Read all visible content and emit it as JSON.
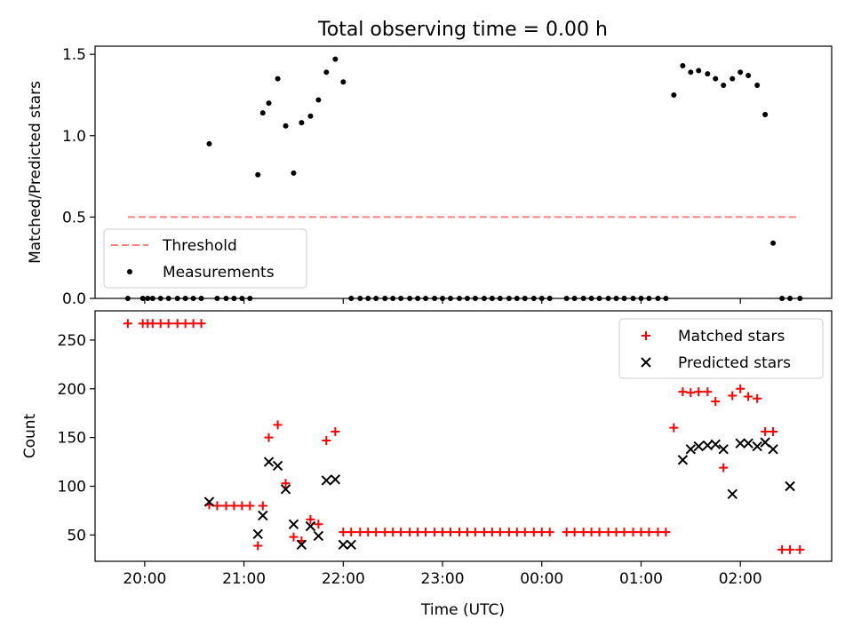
{
  "title": "Total observing time = 0.00 h",
  "chart_data": [
    {
      "type": "scatter",
      "panel": "top",
      "ylabel": "Matched/Predicted stars",
      "ylim": [
        0,
        1.55
      ],
      "yticks": [
        0.0,
        0.5,
        1.0,
        1.5
      ],
      "ytick_labels": [
        "0.0",
        "0.5",
        "1.0",
        "1.5"
      ],
      "xlim": [
        19.5,
        26.92
      ],
      "grid": false,
      "legend_position": "lower-left",
      "threshold": {
        "name": "Threshold",
        "value": 0.5,
        "x": [
          19.83,
          26.6
        ],
        "color": "#ff7f7f"
      },
      "series": [
        {
          "name": "Measurements",
          "color": "#000000",
          "x": [
            19.83,
            19.98,
            20.03,
            20.08,
            20.16,
            20.24,
            20.33,
            20.41,
            20.49,
            20.57,
            20.65,
            20.73,
            20.82,
            20.9,
            20.98,
            21.06,
            21.14,
            21.19,
            21.25,
            21.34,
            21.42,
            21.5,
            21.58,
            21.67,
            21.75,
            21.83,
            21.92,
            22.0,
            22.08,
            22.17,
            22.25,
            22.33,
            22.42,
            22.5,
            22.58,
            22.67,
            22.75,
            22.83,
            22.92,
            23.0,
            23.08,
            23.17,
            23.25,
            23.33,
            23.42,
            23.5,
            23.58,
            23.67,
            23.75,
            23.83,
            23.92,
            24.0,
            24.08,
            24.25,
            24.33,
            24.42,
            24.5,
            24.58,
            24.67,
            24.75,
            24.83,
            24.92,
            25.0,
            25.08,
            25.17,
            25.25,
            25.33,
            25.42,
            25.5,
            25.58,
            25.67,
            25.75,
            25.83,
            25.92,
            26.0,
            26.08,
            26.17,
            26.25,
            26.33,
            26.42,
            26.5,
            26.6
          ],
          "y": [
            0.0,
            0.0,
            0.0,
            0.0,
            0.0,
            0.0,
            0.0,
            0.0,
            0.0,
            0.0,
            0.95,
            0.0,
            0.0,
            0.0,
            0.0,
            0.0,
            0.76,
            1.14,
            1.2,
            1.35,
            1.06,
            0.77,
            1.08,
            1.12,
            1.22,
            1.39,
            1.47,
            1.33,
            0.0,
            0.0,
            0.0,
            0.0,
            0.0,
            0.0,
            0.0,
            0.0,
            0.0,
            0.0,
            0.0,
            0.0,
            0.0,
            0.0,
            0.0,
            0.0,
            0.0,
            0.0,
            0.0,
            0.0,
            0.0,
            0.0,
            0.0,
            0.0,
            0.0,
            0.0,
            0.0,
            0.0,
            0.0,
            0.0,
            0.0,
            0.0,
            0.0,
            0.0,
            0.0,
            0.0,
            0.0,
            0.0,
            1.25,
            1.43,
            1.39,
            1.4,
            1.38,
            1.35,
            1.31,
            1.35,
            1.39,
            1.37,
            1.31,
            1.13,
            0.34,
            0.0,
            0.0,
            0.0
          ]
        }
      ]
    },
    {
      "type": "scatter",
      "panel": "bottom",
      "xlabel": "Time (UTC)",
      "ylabel": "Count",
      "ylim": [
        23,
        280
      ],
      "yticks": [
        50,
        100,
        150,
        200,
        250
      ],
      "ytick_labels": [
        "50",
        "100",
        "150",
        "200",
        "250"
      ],
      "xlim": [
        19.5,
        26.92
      ],
      "xticks": [
        20,
        21,
        22,
        23,
        24,
        25,
        26
      ],
      "xtick_labels": [
        "20:00",
        "21:00",
        "22:00",
        "23:00",
        "00:00",
        "01:00",
        "02:00"
      ],
      "grid": false,
      "legend_position": "top-right",
      "series": [
        {
          "name": "Matched stars",
          "marker": "plus",
          "color": "#ff0000",
          "x": [
            19.83,
            19.98,
            20.03,
            20.08,
            20.16,
            20.24,
            20.33,
            20.41,
            20.49,
            20.57,
            20.65,
            20.73,
            20.82,
            20.9,
            20.98,
            21.06,
            21.14,
            21.19,
            21.25,
            21.34,
            21.42,
            21.5,
            21.58,
            21.67,
            21.75,
            21.83,
            21.92,
            22.0,
            22.08,
            22.17,
            22.25,
            22.33,
            22.42,
            22.5,
            22.58,
            22.67,
            22.75,
            22.83,
            22.92,
            23.0,
            23.08,
            23.17,
            23.25,
            23.33,
            23.42,
            23.5,
            23.58,
            23.67,
            23.75,
            23.83,
            23.92,
            24.0,
            24.08,
            24.25,
            24.33,
            24.42,
            24.5,
            24.58,
            24.67,
            24.75,
            24.83,
            24.92,
            25.0,
            25.08,
            25.17,
            25.25,
            25.33,
            25.42,
            25.5,
            25.58,
            25.67,
            25.75,
            25.83,
            25.92,
            26.0,
            26.08,
            26.17,
            26.25,
            26.33,
            26.42,
            26.5,
            26.6
          ],
          "y": [
            267,
            267,
            267,
            267,
            267,
            267,
            267,
            267,
            267,
            267,
            81,
            80,
            80,
            80,
            80,
            80,
            39,
            80,
            150,
            163,
            103,
            48,
            44,
            66,
            61,
            147,
            156,
            53,
            53,
            53,
            53,
            53,
            53,
            53,
            53,
            53,
            53,
            53,
            53,
            53,
            53,
            53,
            53,
            53,
            53,
            53,
            53,
            53,
            53,
            53,
            53,
            53,
            53,
            53,
            53,
            53,
            53,
            53,
            53,
            53,
            53,
            53,
            53,
            53,
            53,
            53,
            160,
            197,
            196,
            197,
            197,
            187,
            119,
            193,
            200,
            192,
            190,
            156,
            156,
            35,
            35,
            35
          ]
        },
        {
          "name": "Predicted stars",
          "marker": "x",
          "color": "#000000",
          "x": [
            20.65,
            21.14,
            21.19,
            21.25,
            21.34,
            21.42,
            21.5,
            21.58,
            21.67,
            21.75,
            21.83,
            21.92,
            22.0,
            22.08,
            25.42,
            25.5,
            25.58,
            25.67,
            25.75,
            25.83,
            25.92,
            26.0,
            26.08,
            26.17,
            26.25,
            26.33,
            26.5
          ],
          "y": [
            84,
            51,
            70,
            125,
            121,
            97,
            61,
            40,
            59,
            49,
            106,
            107,
            40,
            40,
            127,
            138,
            141,
            142,
            143,
            138,
            92,
            144,
            144,
            141,
            145,
            138,
            100
          ]
        }
      ]
    }
  ]
}
